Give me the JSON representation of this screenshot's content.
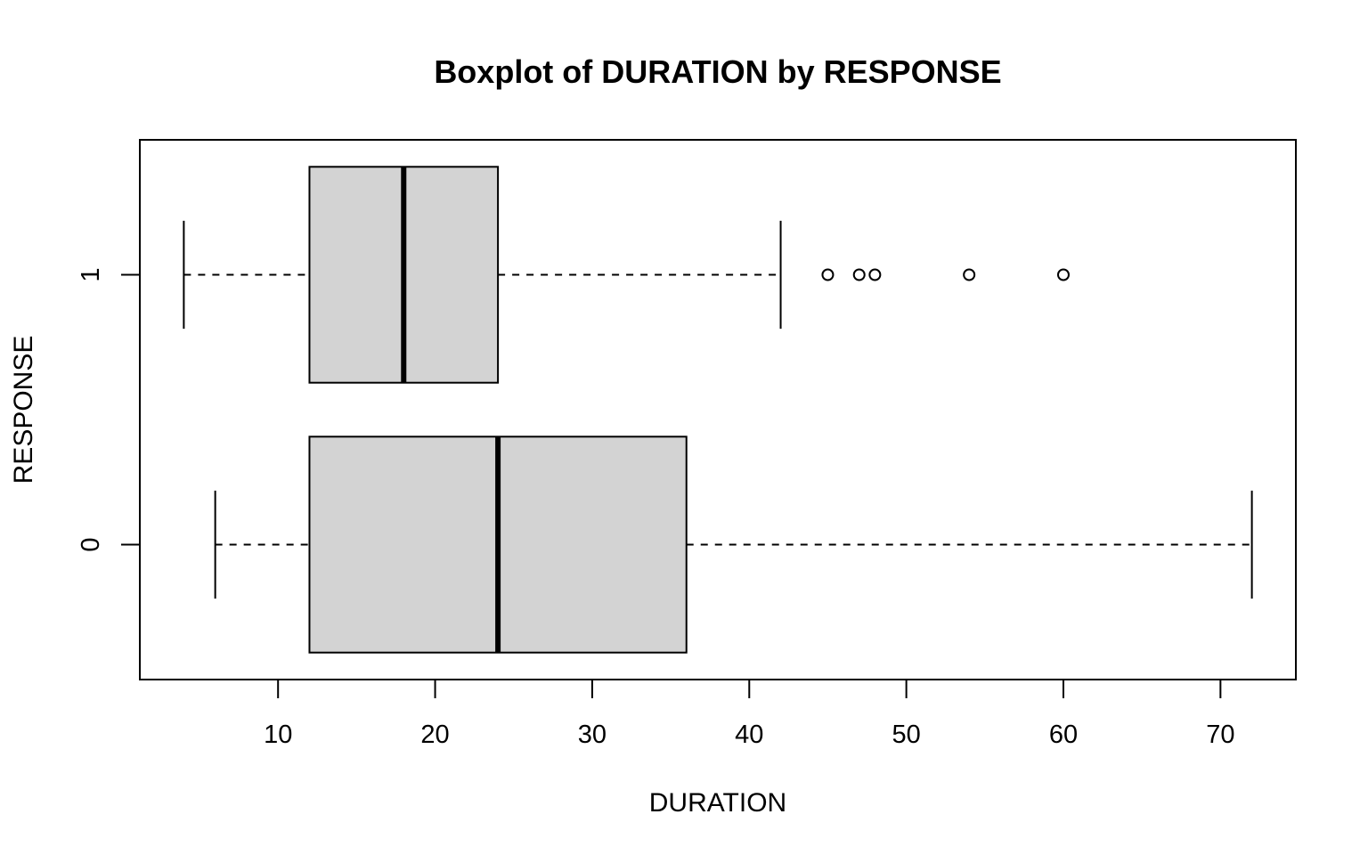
{
  "chart_data": {
    "type": "boxplot",
    "orientation": "horizontal",
    "title": "Boxplot of DURATION by RESPONSE",
    "xlabel": "DURATION",
    "ylabel": "RESPONSE",
    "xlim": [
      1.2,
      74.8
    ],
    "xticks": [
      10,
      20,
      30,
      40,
      50,
      60,
      70
    ],
    "categories": [
      "0",
      "1"
    ],
    "box_fill": "#d3d3d3",
    "boxes": [
      {
        "category": "0",
        "whisker_low": 6,
        "q1": 12,
        "median": 24,
        "q3": 36,
        "whisker_high": 72,
        "outliers": []
      },
      {
        "category": "1",
        "whisker_low": 4,
        "q1": 12,
        "median": 18,
        "q3": 24,
        "whisker_high": 42,
        "outliers": [
          45,
          47,
          48,
          54,
          60
        ]
      }
    ],
    "grid": false,
    "legend": "none"
  }
}
